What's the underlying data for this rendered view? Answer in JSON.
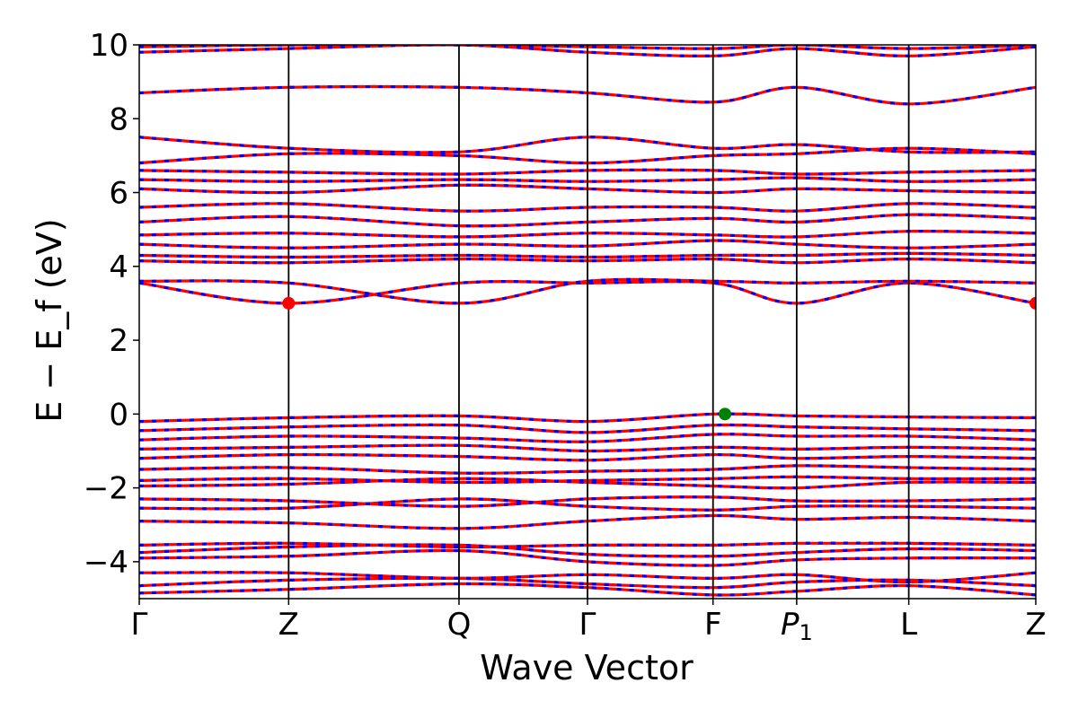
{
  "chart_data": {
    "type": "line",
    "xlabel": "Wave Vector",
    "ylabel": "E − E_f (eV)",
    "ylim": [
      -5,
      10
    ],
    "yticks": [
      -4,
      -2,
      0,
      2,
      4,
      6,
      8,
      10
    ],
    "ytick_labels": [
      "−4",
      "−2",
      "0",
      "2",
      "4",
      "6",
      "8",
      "10"
    ],
    "kpath": [
      {
        "label": "Γ",
        "pos": 0.0
      },
      {
        "label": "Z",
        "pos": 1.0
      },
      {
        "label": "Q",
        "pos": 2.14
      },
      {
        "label": "Γ",
        "pos": 3.0
      },
      {
        "label": "F",
        "pos": 3.84
      },
      {
        "label": "P₁",
        "pos": 4.4
      },
      {
        "label": "L",
        "pos": 5.15
      },
      {
        "label": "Z",
        "pos": 6.0
      }
    ],
    "xlim": [
      0,
      6.0
    ],
    "series": [
      {
        "color": "#ff0000",
        "style": "solid"
      },
      {
        "color": "#0000ff",
        "style": "dashed"
      }
    ],
    "bands": [
      [
        -4.85,
        -4.75,
        -4.6,
        -4.7,
        -4.9,
        -4.8,
        -4.65,
        -4.9
      ],
      [
        -4.65,
        -4.5,
        -4.45,
        -4.6,
        -4.7,
        -4.55,
        -4.5,
        -4.65
      ],
      [
        -4.3,
        -4.3,
        -4.45,
        -4.35,
        -4.45,
        -4.35,
        -4.55,
        -4.3
      ],
      [
        -3.9,
        -3.85,
        -3.7,
        -4.0,
        -4.1,
        -3.95,
        -3.9,
        -3.9
      ],
      [
        -3.75,
        -3.6,
        -3.55,
        -3.8,
        -3.85,
        -3.75,
        -3.65,
        -3.7
      ],
      [
        -3.55,
        -3.5,
        -3.6,
        -3.55,
        -3.55,
        -3.5,
        -3.5,
        -3.55
      ],
      [
        -2.9,
        -2.95,
        -3.1,
        -2.9,
        -2.75,
        -2.85,
        -2.8,
        -2.9
      ],
      [
        -2.55,
        -2.55,
        -2.3,
        -2.5,
        -2.6,
        -2.5,
        -2.5,
        -2.55
      ],
      [
        -2.3,
        -2.35,
        -2.5,
        -2.3,
        -2.25,
        -2.35,
        -2.35,
        -2.3
      ],
      [
        -1.95,
        -1.9,
        -1.75,
        -1.85,
        -1.95,
        -2.0,
        -1.85,
        -1.85
      ],
      [
        -1.8,
        -1.75,
        -1.85,
        -1.8,
        -1.75,
        -1.7,
        -1.75,
        -1.75
      ],
      [
        -1.5,
        -1.45,
        -1.6,
        -1.55,
        -1.5,
        -1.4,
        -1.45,
        -1.5
      ],
      [
        -1.2,
        -1.1,
        -1.15,
        -1.25,
        -1.1,
        -1.2,
        -1.15,
        -1.2
      ],
      [
        -0.95,
        -0.9,
        -0.85,
        -1.0,
        -0.9,
        -0.95,
        -0.9,
        -0.95
      ],
      [
        -0.7,
        -0.6,
        -0.65,
        -0.75,
        -0.55,
        -0.6,
        -0.6,
        -0.7
      ],
      [
        -0.45,
        -0.35,
        -0.3,
        -0.5,
        -0.3,
        -0.35,
        -0.4,
        -0.45
      ],
      [
        -0.2,
        -0.1,
        -0.05,
        -0.2,
        0.0,
        -0.05,
        -0.08,
        -0.1
      ],
      [
        3.55,
        3.0,
        3.55,
        3.55,
        3.55,
        3.0,
        3.55,
        3.0
      ],
      [
        3.6,
        3.55,
        3.0,
        3.6,
        3.6,
        3.55,
        3.6,
        3.55
      ],
      [
        4.15,
        4.1,
        4.2,
        4.15,
        4.2,
        4.1,
        4.2,
        4.1
      ],
      [
        4.3,
        4.25,
        4.3,
        4.25,
        4.3,
        4.3,
        4.35,
        4.3
      ],
      [
        4.6,
        4.5,
        4.6,
        4.55,
        4.7,
        4.6,
        4.5,
        4.6
      ],
      [
        4.85,
        4.9,
        4.8,
        4.9,
        4.85,
        4.8,
        4.95,
        4.9
      ],
      [
        5.2,
        5.35,
        5.1,
        5.2,
        5.3,
        5.2,
        5.4,
        5.3
      ],
      [
        5.6,
        5.7,
        5.5,
        5.6,
        5.6,
        5.5,
        5.7,
        5.6
      ],
      [
        6.1,
        6.0,
        6.2,
        6.1,
        6.0,
        6.1,
        6.05,
        6.0
      ],
      [
        6.35,
        6.3,
        6.35,
        6.3,
        6.35,
        6.4,
        6.3,
        6.35
      ],
      [
        6.6,
        6.55,
        6.5,
        6.6,
        6.6,
        6.5,
        6.55,
        6.6
      ],
      [
        6.8,
        7.05,
        7.0,
        6.8,
        7.0,
        7.05,
        7.2,
        7.05
      ],
      [
        7.5,
        7.2,
        7.1,
        7.5,
        7.2,
        7.3,
        7.1,
        7.1
      ],
      [
        8.7,
        8.85,
        8.85,
        8.7,
        8.45,
        8.85,
        8.4,
        8.85
      ],
      [
        9.8,
        9.9,
        10.0,
        9.8,
        9.7,
        9.9,
        9.7,
        9.95
      ],
      [
        9.95,
        10.0,
        10.0,
        9.95,
        9.9,
        10.0,
        9.9,
        10.0
      ]
    ],
    "markers": [
      {
        "x": 1.0,
        "y": 3.0,
        "color": "#ff0000"
      },
      {
        "x": 6.0,
        "y": 3.0,
        "color": "#ff0000"
      },
      {
        "x": 3.92,
        "y": 0.0,
        "color": "#008000"
      }
    ]
  }
}
